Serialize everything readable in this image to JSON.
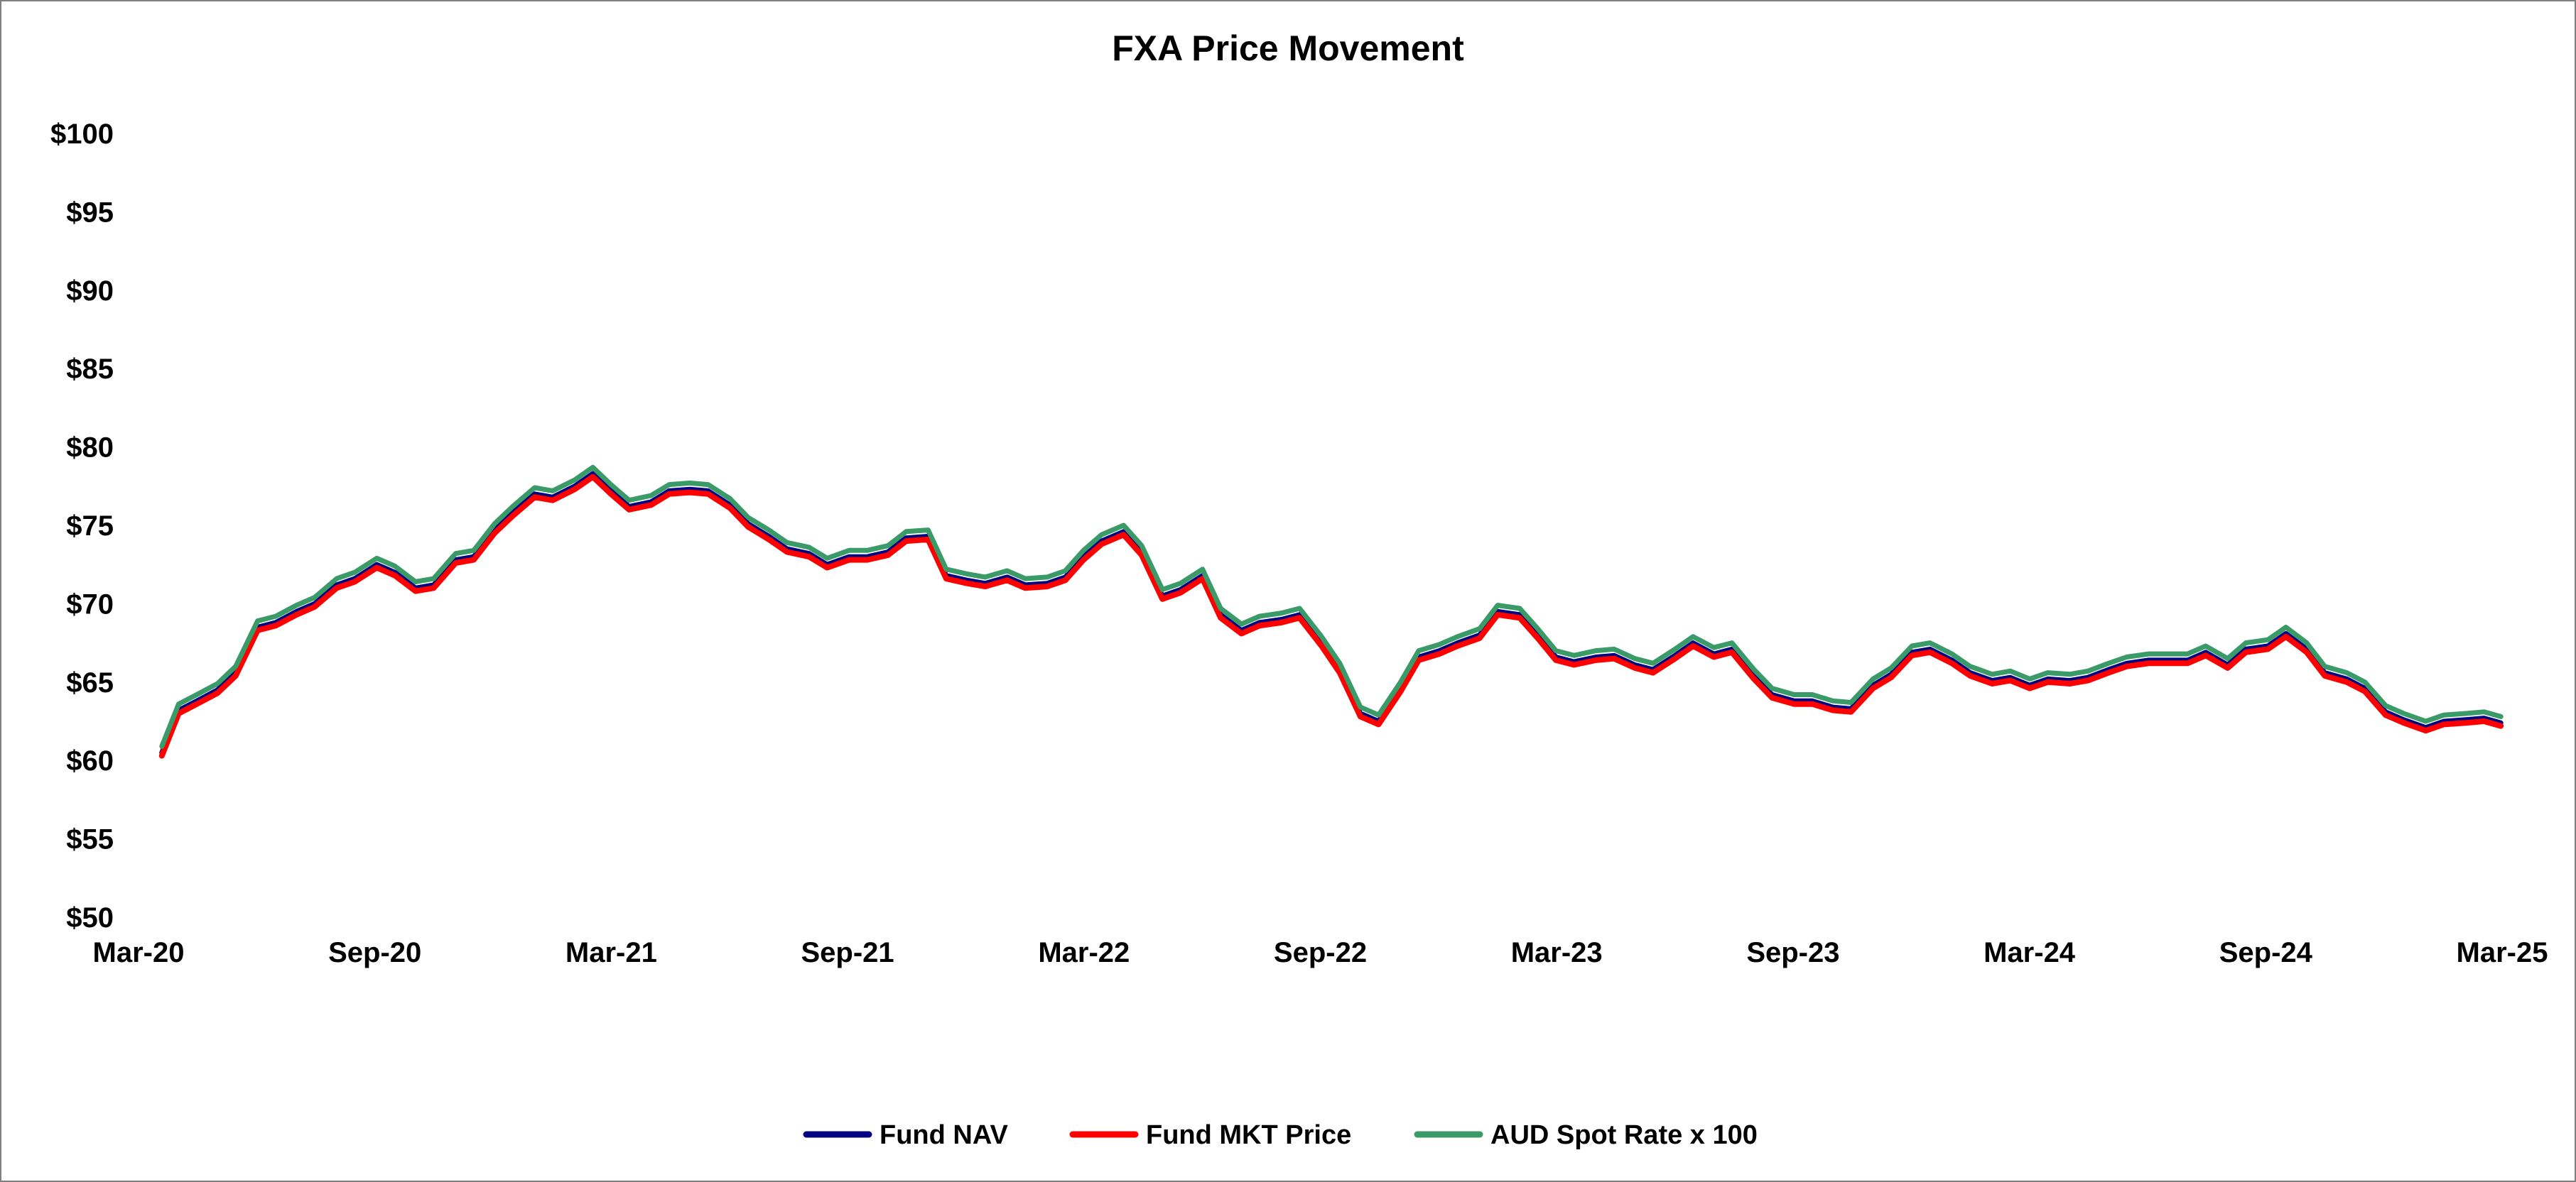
{
  "chart_data": {
    "type": "line",
    "title": "FXA Price Movement",
    "xlabel": "",
    "ylabel": "",
    "x_range": [
      "2020-03-01",
      "2025-03-01"
    ],
    "x_ticks": [
      "Mar-20",
      "Sep-20",
      "Mar-21",
      "Sep-21",
      "Mar-22",
      "Sep-22",
      "Mar-23",
      "Sep-23",
      "Mar-24",
      "Sep-24",
      "Mar-25"
    ],
    "y_ticks": [
      "$100",
      "$95",
      "$90",
      "$85",
      "$80",
      "$75",
      "$70",
      "$65",
      "$60",
      "$55",
      "$50"
    ],
    "ylim": [
      50,
      100
    ],
    "grid": false,
    "legend_position": "bottom",
    "series": [
      {
        "name": "Fund NAV",
        "color": "#000080"
      },
      {
        "name": "Fund MKT Price",
        "color": "#ff0000"
      },
      {
        "name": "AUD Spot Rate x 100",
        "color": "#3a9a68"
      }
    ],
    "x": [
      "2020-03-19",
      "2020-04-01",
      "2020-04-15",
      "2020-05-01",
      "2020-05-15",
      "2020-06-01",
      "2020-06-15",
      "2020-07-01",
      "2020-07-15",
      "2020-08-01",
      "2020-08-15",
      "2020-09-01",
      "2020-09-15",
      "2020-10-01",
      "2020-10-15",
      "2020-11-01",
      "2020-11-15",
      "2020-12-01",
      "2020-12-15",
      "2021-01-01",
      "2021-01-15",
      "2021-02-01",
      "2021-02-15",
      "2021-03-01",
      "2021-03-15",
      "2021-04-01",
      "2021-04-15",
      "2021-05-01",
      "2021-05-15",
      "2021-06-01",
      "2021-06-15",
      "2021-07-01",
      "2021-07-15",
      "2021-08-01",
      "2021-08-15",
      "2021-09-01",
      "2021-09-15",
      "2021-10-01",
      "2021-10-15",
      "2021-11-01",
      "2021-11-15",
      "2021-12-01",
      "2021-12-15",
      "2022-01-01",
      "2022-01-15",
      "2022-02-01",
      "2022-02-15",
      "2022-03-01",
      "2022-03-15",
      "2022-04-01",
      "2022-04-15",
      "2022-05-01",
      "2022-05-15",
      "2022-06-01",
      "2022-06-15",
      "2022-07-01",
      "2022-07-15",
      "2022-08-01",
      "2022-08-15",
      "2022-09-01",
      "2022-09-15",
      "2022-10-01",
      "2022-10-15",
      "2022-11-01",
      "2022-11-15",
      "2022-12-01",
      "2022-12-15",
      "2023-01-01",
      "2023-01-15",
      "2023-02-01",
      "2023-02-15",
      "2023-03-01",
      "2023-03-15",
      "2023-04-01",
      "2023-04-15",
      "2023-05-01",
      "2023-05-15",
      "2023-06-01",
      "2023-06-15",
      "2023-07-01",
      "2023-07-15",
      "2023-08-01",
      "2023-08-15",
      "2023-09-01",
      "2023-09-15",
      "2023-10-01",
      "2023-10-15",
      "2023-11-01",
      "2023-11-15",
      "2023-12-01",
      "2023-12-15",
      "2024-01-01",
      "2024-01-15",
      "2024-02-01",
      "2024-02-15",
      "2024-03-01",
      "2024-03-15",
      "2024-04-01",
      "2024-04-15",
      "2024-05-01",
      "2024-05-15",
      "2024-06-01",
      "2024-06-15",
      "2024-07-01",
      "2024-07-15",
      "2024-08-01",
      "2024-08-15",
      "2024-09-01",
      "2024-09-15",
      "2024-10-01",
      "2024-10-15",
      "2024-11-01",
      "2024-11-15",
      "2024-12-01",
      "2024-12-15",
      "2025-01-01",
      "2025-01-15",
      "2025-02-01",
      "2025-02-15",
      "2025-02-28"
    ],
    "nav": [
      60.5,
      63.2,
      63.8,
      64.5,
      65.6,
      68.5,
      68.8,
      69.5,
      70.0,
      71.2,
      71.6,
      72.5,
      72.0,
      71.0,
      71.2,
      72.8,
      73.0,
      74.7,
      75.8,
      77.0,
      76.8,
      77.5,
      78.3,
      77.2,
      76.2,
      76.5,
      77.2,
      77.3,
      77.2,
      76.3,
      75.1,
      74.3,
      73.5,
      73.2,
      72.5,
      73.0,
      73.0,
      73.3,
      74.2,
      74.3,
      71.8,
      71.5,
      71.3,
      71.7,
      71.2,
      71.3,
      71.7,
      73.0,
      74.0,
      74.6,
      73.3,
      70.5,
      70.9,
      71.8,
      69.3,
      68.3,
      68.8,
      69.0,
      69.3,
      67.5,
      65.8,
      63.0,
      62.5,
      64.6,
      66.6,
      67.0,
      67.5,
      68.0,
      69.5,
      69.3,
      68.0,
      66.6,
      66.3,
      66.6,
      66.7,
      66.1,
      65.8,
      66.7,
      67.5,
      66.8,
      67.1,
      65.4,
      64.2,
      63.8,
      63.8,
      63.4,
      63.3,
      64.8,
      65.5,
      66.9,
      67.1,
      66.4,
      65.6,
      65.1,
      65.3,
      64.8,
      65.2,
      65.1,
      65.3,
      65.8,
      66.2,
      66.4,
      66.4,
      66.4,
      66.9,
      66.1,
      67.1,
      67.3,
      68.1,
      67.1,
      65.6,
      65.2,
      64.6,
      63.1,
      62.6,
      62.1,
      62.5,
      62.6,
      62.7,
      62.4
    ],
    "mkt": [
      60.3,
      63.0,
      63.6,
      64.3,
      65.4,
      68.3,
      68.6,
      69.3,
      69.8,
      71.0,
      71.4,
      72.3,
      71.8,
      70.8,
      71.0,
      72.6,
      72.8,
      74.5,
      75.6,
      76.8,
      76.6,
      77.3,
      78.1,
      77.0,
      76.0,
      76.3,
      77.0,
      77.1,
      77.0,
      76.1,
      74.9,
      74.1,
      73.3,
      73.0,
      72.3,
      72.8,
      72.8,
      73.1,
      74.0,
      74.1,
      71.6,
      71.3,
      71.1,
      71.5,
      71.0,
      71.1,
      71.5,
      72.8,
      73.8,
      74.4,
      73.1,
      70.3,
      70.7,
      71.6,
      69.1,
      68.1,
      68.6,
      68.8,
      69.1,
      67.3,
      65.6,
      62.8,
      62.3,
      64.4,
      66.4,
      66.8,
      67.3,
      67.8,
      69.3,
      69.1,
      67.8,
      66.4,
      66.1,
      66.4,
      66.5,
      65.9,
      65.6,
      66.5,
      67.3,
      66.6,
      66.9,
      65.2,
      64.0,
      63.6,
      63.6,
      63.2,
      63.1,
      64.6,
      65.3,
      66.7,
      66.9,
      66.2,
      65.4,
      64.9,
      65.1,
      64.6,
      65.0,
      64.9,
      65.1,
      65.6,
      66.0,
      66.2,
      66.2,
      66.2,
      66.7,
      65.9,
      66.9,
      67.1,
      67.9,
      66.9,
      65.4,
      65.0,
      64.4,
      62.9,
      62.4,
      61.9,
      62.3,
      62.4,
      62.5,
      62.2
    ],
    "spot": [
      60.9,
      63.6,
      64.2,
      64.9,
      66.0,
      68.9,
      69.2,
      69.9,
      70.4,
      71.6,
      72.0,
      72.9,
      72.4,
      71.4,
      71.6,
      73.2,
      73.4,
      75.1,
      76.2,
      77.4,
      77.2,
      77.9,
      78.7,
      77.6,
      76.6,
      76.9,
      77.6,
      77.7,
      77.6,
      76.7,
      75.5,
      74.7,
      73.9,
      73.6,
      72.9,
      73.4,
      73.4,
      73.7,
      74.6,
      74.7,
      72.2,
      71.9,
      71.7,
      72.1,
      71.6,
      71.7,
      72.1,
      73.4,
      74.4,
      75.0,
      73.7,
      70.9,
      71.3,
      72.2,
      69.7,
      68.7,
      69.2,
      69.4,
      69.7,
      67.9,
      66.2,
      63.4,
      62.9,
      65.0,
      67.0,
      67.4,
      67.9,
      68.4,
      69.9,
      69.7,
      68.4,
      67.0,
      66.7,
      67.0,
      67.1,
      66.5,
      66.2,
      67.1,
      67.9,
      67.2,
      67.5,
      65.8,
      64.6,
      64.2,
      64.2,
      63.8,
      63.7,
      65.2,
      65.9,
      67.3,
      67.5,
      66.8,
      66.0,
      65.5,
      65.7,
      65.2,
      65.6,
      65.5,
      65.7,
      66.2,
      66.6,
      66.8,
      66.8,
      66.8,
      67.3,
      66.5,
      67.5,
      67.7,
      68.5,
      67.5,
      66.0,
      65.6,
      65.0,
      63.5,
      63.0,
      62.5,
      62.9,
      63.0,
      63.1,
      62.8
    ]
  }
}
